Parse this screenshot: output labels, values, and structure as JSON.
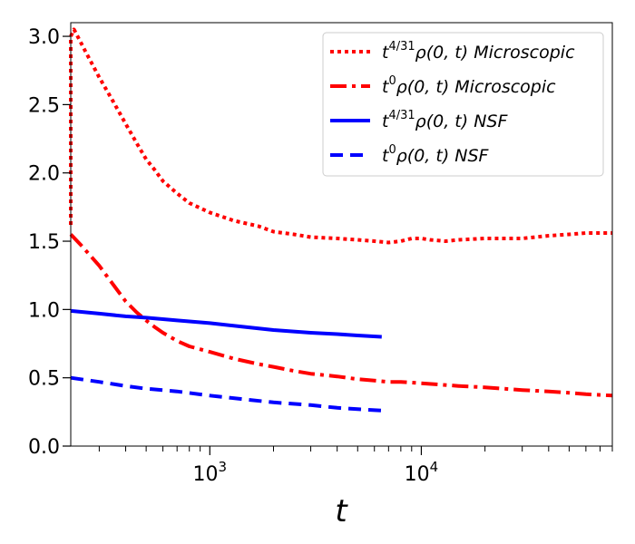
{
  "chart_data": {
    "type": "line",
    "title": "",
    "xlabel": "t",
    "ylabel": "",
    "xscale": "log",
    "xlim": [
      220,
      80000
    ],
    "ylim": [
      0.0,
      3.1
    ],
    "grid": false,
    "legend_position": "top-right",
    "x_tick_labels": [
      {
        "value": 1000,
        "base": "10",
        "exp": "3"
      },
      {
        "value": 10000,
        "base": "10",
        "exp": "4"
      }
    ],
    "y_ticks": [
      0.0,
      0.5,
      1.0,
      1.5,
      2.0,
      2.5,
      3.0
    ],
    "y_tick_labels": [
      "0.0",
      "0.5",
      "1.0",
      "1.5",
      "2.0",
      "2.5",
      "3.0"
    ],
    "series": [
      {
        "name": "t^{4/31}ρ(0,t) Microscopic",
        "legend": {
          "prefix": "t",
          "sup": "4/31",
          "expr": "ρ(0, t)",
          "suffix": "Microscopic"
        },
        "color": "#ff0000",
        "style": "dotted",
        "x": [
          220,
          220,
          228,
          260,
          300,
          350,
          400,
          450,
          500,
          550,
          600,
          700,
          800,
          1000,
          1300,
          1700,
          2000,
          2500,
          3000,
          4000,
          5000,
          6000,
          7000,
          8000,
          9000,
          10000,
          11000,
          13000,
          15000,
          20000,
          30000,
          40000,
          50000,
          60000,
          70000,
          80000
        ],
        "y": [
          1.62,
          3.0,
          3.05,
          2.88,
          2.7,
          2.52,
          2.36,
          2.22,
          2.1,
          2.02,
          1.94,
          1.85,
          1.78,
          1.71,
          1.65,
          1.61,
          1.57,
          1.55,
          1.53,
          1.52,
          1.51,
          1.5,
          1.49,
          1.5,
          1.52,
          1.52,
          1.51,
          1.5,
          1.51,
          1.52,
          1.52,
          1.54,
          1.55,
          1.56,
          1.56,
          1.56
        ]
      },
      {
        "name": "t^0ρ(0,t) Microscopic",
        "legend": {
          "prefix": "t",
          "sup": "0",
          "expr": "ρ(0, t)",
          "suffix": "Microscopic"
        },
        "color": "#ff0000",
        "style": "dashdot",
        "x": [
          220,
          250,
          300,
          350,
          400,
          450,
          500,
          550,
          600,
          700,
          800,
          1000,
          1300,
          1700,
          2000,
          2500,
          3000,
          4000,
          5000,
          6000,
          7000,
          8000,
          10000,
          15000,
          20000,
          30000,
          40000,
          50000,
          60000,
          80000
        ],
        "y": [
          1.55,
          1.46,
          1.32,
          1.18,
          1.06,
          0.98,
          0.92,
          0.87,
          0.83,
          0.77,
          0.73,
          0.69,
          0.64,
          0.6,
          0.58,
          0.55,
          0.53,
          0.51,
          0.49,
          0.48,
          0.47,
          0.47,
          0.46,
          0.44,
          0.43,
          0.41,
          0.4,
          0.39,
          0.38,
          0.37
        ]
      },
      {
        "name": "t^{4/31}ρ(0,t) NSF",
        "legend": {
          "prefix": "t",
          "sup": "4/31",
          "expr": "ρ(0, t)",
          "suffix": "NSF"
        },
        "color": "#0000ff",
        "style": "solid",
        "x": [
          220,
          300,
          400,
          500,
          700,
          1000,
          1500,
          2000,
          3000,
          4000,
          5000,
          6500
        ],
        "y": [
          0.99,
          0.97,
          0.95,
          0.94,
          0.92,
          0.9,
          0.87,
          0.85,
          0.83,
          0.82,
          0.81,
          0.8
        ]
      },
      {
        "name": "t^0ρ(0,t) NSF",
        "legend": {
          "prefix": "t",
          "sup": "0",
          "expr": "ρ(0, t)",
          "suffix": "NSF"
        },
        "color": "#0000ff",
        "style": "dashed",
        "x": [
          220,
          300,
          400,
          500,
          700,
          1000,
          1500,
          2000,
          3000,
          4000,
          5000,
          6500
        ],
        "y": [
          0.5,
          0.47,
          0.44,
          0.42,
          0.4,
          0.37,
          0.34,
          0.32,
          0.3,
          0.28,
          0.27,
          0.26
        ]
      }
    ]
  }
}
